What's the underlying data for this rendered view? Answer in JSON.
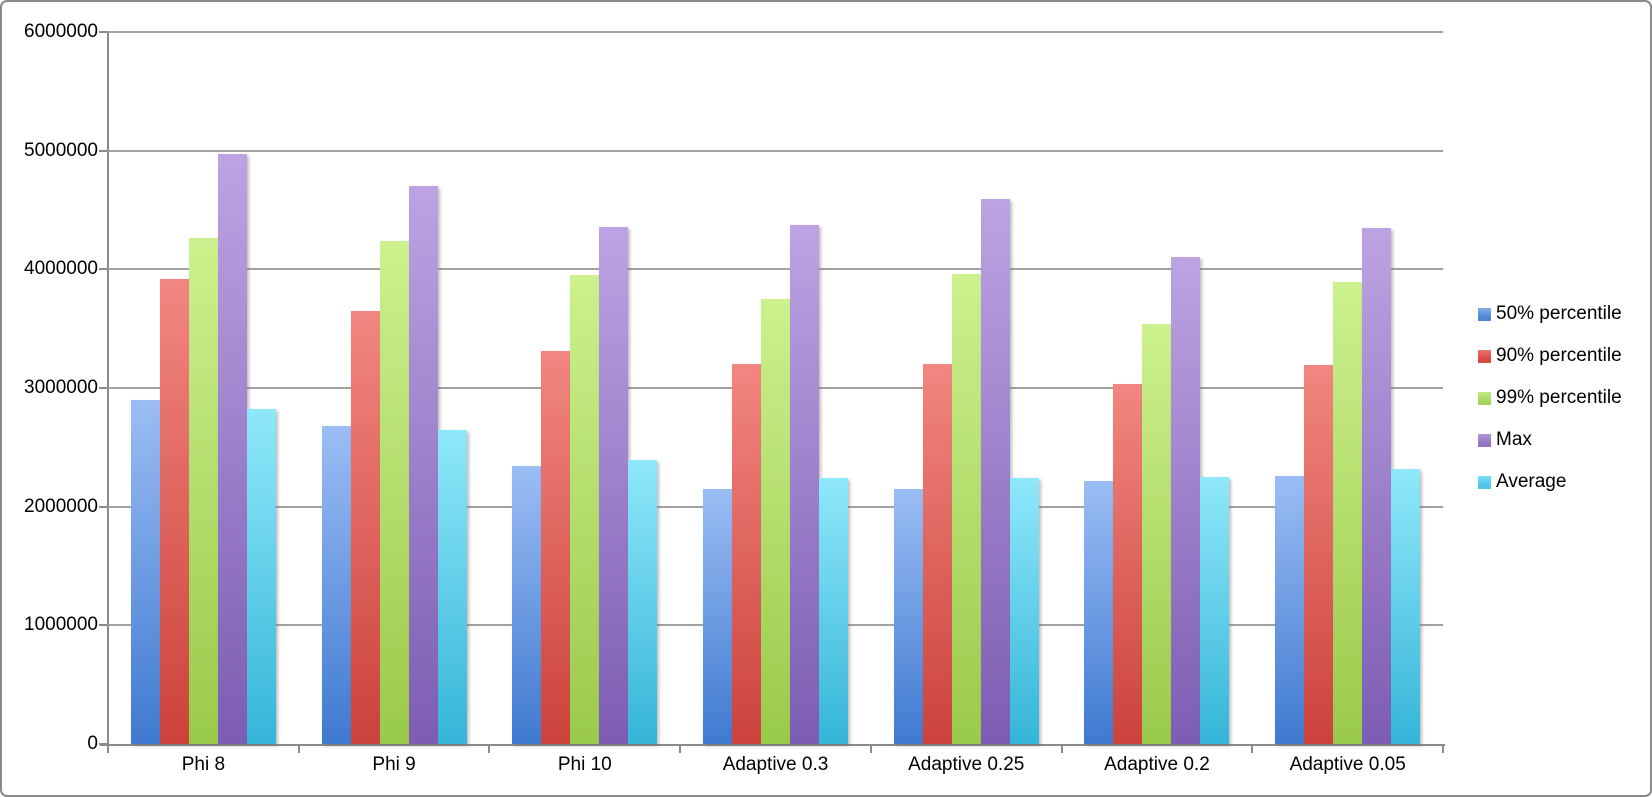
{
  "chart_data": {
    "type": "bar",
    "title": "",
    "xlabel": "",
    "ylabel": "",
    "categories": [
      "Phi 8",
      "Phi 9",
      "Phi 10",
      "Adaptive 0.3",
      "Adaptive 0.25",
      "Adaptive 0.2",
      "Adaptive 0.05"
    ],
    "series": [
      {
        "name": "50% percentile",
        "legend_color": "#4e87d5",
        "gradient_top": "#9bbdf4",
        "gradient_bottom": "#3f7ad0",
        "values": [
          2900000,
          2680000,
          2340000,
          2150000,
          2150000,
          2220000,
          2260000
        ]
      },
      {
        "name": "90% percentile",
        "legend_color": "#d84a42",
        "gradient_top": "#f28680",
        "gradient_bottom": "#cc423c",
        "values": [
          3920000,
          3650000,
          3310000,
          3200000,
          3200000,
          3030000,
          3190000
        ]
      },
      {
        "name": "99% percentile",
        "legend_color": "#a6d55f",
        "gradient_top": "#ccf18e",
        "gradient_bottom": "#9aca4a",
        "values": [
          4260000,
          4240000,
          3950000,
          3750000,
          3960000,
          3540000,
          3890000
        ]
      },
      {
        "name": "Max",
        "legend_color": "#9377c1",
        "gradient_top": "#bda3e2",
        "gradient_bottom": "#7c5db3",
        "values": [
          4970000,
          4700000,
          4360000,
          4370000,
          4590000,
          4100000,
          4350000
        ]
      },
      {
        "name": "Average",
        "legend_color": "#4fc7e9",
        "gradient_top": "#8fe8fa",
        "gradient_bottom": "#35b5d8",
        "values": [
          2820000,
          2650000,
          2390000,
          2240000,
          2240000,
          2250000,
          2320000
        ]
      }
    ],
    "ylim": [
      0,
      6000000
    ],
    "y_tick_step": 1000000,
    "y_tick_labels": [
      "0",
      "1000000",
      "2000000",
      "3000000",
      "4000000",
      "5000000",
      "6000000"
    ],
    "grid": "horizontal-on",
    "legend_position": "right"
  }
}
